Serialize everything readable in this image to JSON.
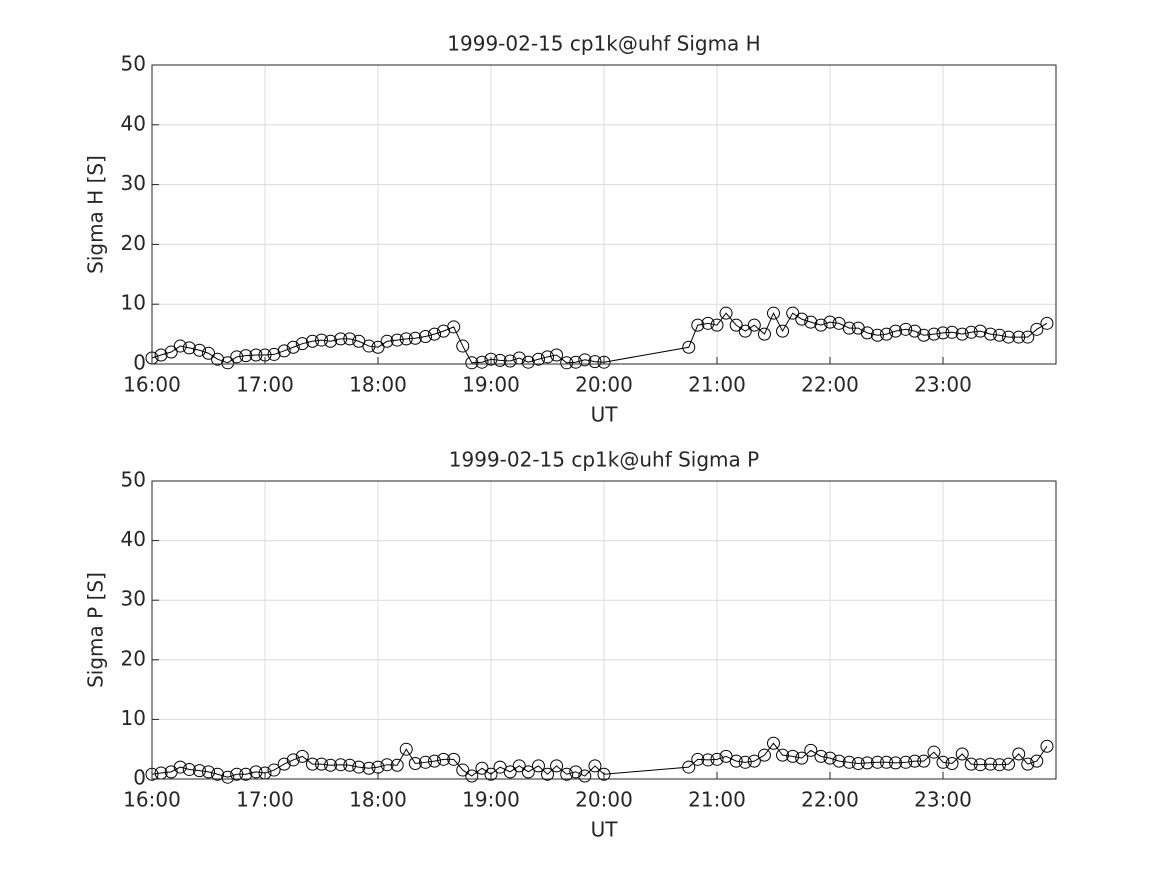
{
  "chart_data": [
    {
      "type": "line",
      "title": "1999-02-15  cp1k@uhf Sigma H",
      "xlabel": "UT",
      "ylabel": "Sigma H [S]",
      "color": "#000000",
      "marker": "circle",
      "grid": true,
      "xlim": [
        16,
        24
      ],
      "xticks": [
        {
          "value": 16,
          "label": "16:00"
        },
        {
          "value": 17,
          "label": "17:00"
        },
        {
          "value": 18,
          "label": "18:00"
        },
        {
          "value": 19,
          "label": "19:00"
        },
        {
          "value": 20,
          "label": "20:00"
        },
        {
          "value": 21,
          "label": "21:00"
        },
        {
          "value": 22,
          "label": "22:00"
        },
        {
          "value": 23,
          "label": "23:00"
        }
      ],
      "ylim": [
        0,
        50
      ],
      "yticks": [
        0,
        10,
        20,
        30,
        40,
        50
      ],
      "x": [
        16,
        16.08,
        16.17,
        16.25,
        16.33,
        16.42,
        16.5,
        16.58,
        16.67,
        16.75,
        16.83,
        16.92,
        17,
        17.08,
        17.17,
        17.25,
        17.33,
        17.42,
        17.5,
        17.58,
        17.67,
        17.75,
        17.83,
        17.92,
        18,
        18.08,
        18.17,
        18.25,
        18.33,
        18.42,
        18.5,
        18.58,
        18.67,
        18.75,
        18.83,
        18.92,
        19,
        19.08,
        19.17,
        19.25,
        19.33,
        19.42,
        19.5,
        19.58,
        19.67,
        19.75,
        19.83,
        19.92,
        20,
        20.75,
        20.83,
        20.92,
        21,
        21.08,
        21.17,
        21.25,
        21.33,
        21.42,
        21.5,
        21.58,
        21.67,
        21.75,
        21.83,
        21.92,
        22,
        22.08,
        22.17,
        22.25,
        22.33,
        22.42,
        22.5,
        22.58,
        22.67,
        22.75,
        22.83,
        22.92,
        23,
        23.08,
        23.17,
        23.25,
        23.33,
        23.42,
        23.5,
        23.58,
        23.67,
        23.75,
        23.83,
        23.92
      ],
      "values": [
        1,
        1.5,
        2,
        3,
        2.7,
        2.3,
        1.8,
        0.8,
        0.2,
        1.2,
        1.4,
        1.5,
        1.5,
        1.6,
        2.2,
        2.8,
        3.4,
        3.8,
        4,
        3.8,
        4.2,
        4.2,
        3.8,
        3,
        2.8,
        3.8,
        4,
        4.2,
        4.3,
        4.6,
        5,
        5.5,
        6.2,
        3,
        0.2,
        0.3,
        0.8,
        0.6,
        0.5,
        1,
        0.3,
        0.8,
        1.2,
        1.5,
        0.2,
        0.3,
        0.7,
        0.4,
        0.3,
        2.8,
        6.5,
        6.8,
        6.5,
        8.5,
        6.5,
        5.5,
        6.5,
        5,
        8.5,
        5.5,
        8.5,
        7.5,
        7,
        6.5,
        7,
        6.8,
        6,
        6,
        5.2,
        4.8,
        5,
        5.5,
        5.8,
        5.5,
        4.8,
        5,
        5.2,
        5.3,
        5,
        5.3,
        5.5,
        5,
        4.8,
        4.5,
        4.5,
        4.5,
        5.8,
        6.8
      ]
    },
    {
      "type": "line",
      "title": "1999-02-15  cp1k@uhf Sigma P",
      "xlabel": "UT",
      "ylabel": "Sigma P [S]",
      "color": "#000000",
      "marker": "circle",
      "grid": true,
      "xlim": [
        16,
        24
      ],
      "xticks": [
        {
          "value": 16,
          "label": "16:00"
        },
        {
          "value": 17,
          "label": "17:00"
        },
        {
          "value": 18,
          "label": "18:00"
        },
        {
          "value": 19,
          "label": "19:00"
        },
        {
          "value": 20,
          "label": "20:00"
        },
        {
          "value": 21,
          "label": "21:00"
        },
        {
          "value": 22,
          "label": "22:00"
        },
        {
          "value": 23,
          "label": "23:00"
        }
      ],
      "ylim": [
        0,
        50
      ],
      "yticks": [
        0,
        10,
        20,
        30,
        40,
        50
      ],
      "x": [
        16,
        16.08,
        16.17,
        16.25,
        16.33,
        16.42,
        16.5,
        16.58,
        16.67,
        16.75,
        16.83,
        16.92,
        17,
        17.08,
        17.17,
        17.25,
        17.33,
        17.42,
        17.5,
        17.58,
        17.67,
        17.75,
        17.83,
        17.92,
        18,
        18.08,
        18.17,
        18.25,
        18.33,
        18.42,
        18.5,
        18.58,
        18.67,
        18.75,
        18.83,
        18.92,
        19,
        19.08,
        19.17,
        19.25,
        19.33,
        19.42,
        19.5,
        19.58,
        19.67,
        19.75,
        19.83,
        19.92,
        20,
        20.75,
        20.83,
        20.92,
        21,
        21.08,
        21.17,
        21.25,
        21.33,
        21.42,
        21.5,
        21.58,
        21.67,
        21.75,
        21.83,
        21.92,
        22,
        22.08,
        22.17,
        22.25,
        22.33,
        22.42,
        22.5,
        22.58,
        22.67,
        22.75,
        22.83,
        22.92,
        23,
        23.08,
        23.17,
        23.25,
        23.33,
        23.42,
        23.5,
        23.58,
        23.67,
        23.75,
        23.83,
        23.92
      ],
      "values": [
        0.8,
        1,
        1.2,
        2,
        1.6,
        1.4,
        1.2,
        0.8,
        0.3,
        0.8,
        0.8,
        1.2,
        1,
        1.5,
        2.5,
        3.2,
        3.8,
        2.5,
        2.5,
        2.3,
        2.4,
        2.3,
        2,
        1.8,
        2,
        2.4,
        2.3,
        5,
        2.6,
        2.8,
        3,
        3.3,
        3.3,
        1.5,
        0.5,
        1.8,
        0.8,
        2,
        1.2,
        2.2,
        1.2,
        2.2,
        0.8,
        2.2,
        0.8,
        1.2,
        0.5,
        2.2,
        0.8,
        2,
        3.3,
        3.2,
        3.3,
        3.8,
        3,
        2.8,
        3,
        4,
        6,
        4,
        3.8,
        3.5,
        4.8,
        3.8,
        3.5,
        3,
        2.8,
        2.6,
        2.7,
        2.8,
        2.8,
        2.7,
        2.8,
        3,
        3,
        4.5,
        2.8,
        2.6,
        4.2,
        2.5,
        2.4,
        2.5,
        2.4,
        2.5,
        4.2,
        2.5,
        3,
        5.5
      ]
    }
  ]
}
